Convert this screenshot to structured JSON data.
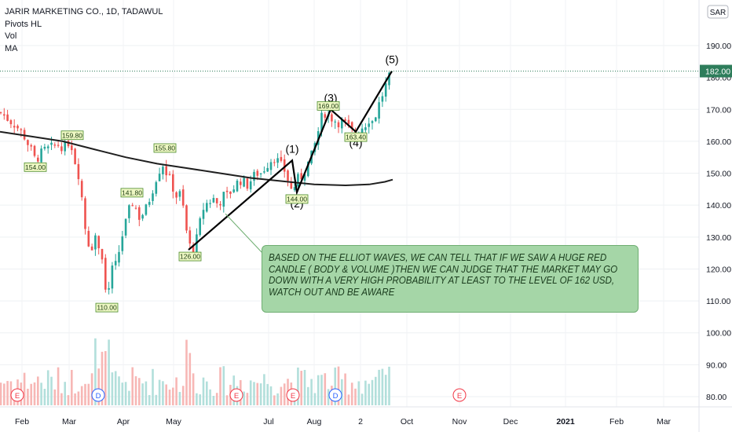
{
  "legend": {
    "symbol": "JARIR MARKETING CO., 1D, TADAWUL",
    "indicators": [
      "Pivots HL",
      "Vol",
      "MA"
    ]
  },
  "currency_badge": "SAR",
  "callout": {
    "text": "BASED ON THE ELLIOT WAVES, WE CAN TELL THAT IF WE SAW A HUGE RED CANDLE ( BODY & VOLUME )THEN WE CAN JUDGE THAT THE MARKET MAY GO DOWN WITH A VERY HIGH PROBABILITY AT LEAST TO THE LEVEL OF 162 USD, WATCH OUT AND BE AWARE"
  },
  "colors": {
    "up": "#26a69a",
    "down": "#ef5350",
    "vol_up": "#b2dfdb",
    "vol_down": "#f7b7b5",
    "ma": "#1f1f1f",
    "wave": "#000000",
    "pivot_bg": "#edf7c3",
    "pivot_border": "#4a8a2a",
    "price_tag": "#2e7d5b",
    "callout_bg": "#a5d6a7"
  },
  "chart_data": {
    "type": "candlestick",
    "ylim": [
      76,
      200
    ],
    "y_ticks": [
      80,
      90,
      100,
      110,
      120,
      130,
      140,
      150,
      160,
      170,
      180,
      190
    ],
    "y_tick_labels": [
      "80.00",
      "90.00",
      "100.00",
      "110.00",
      "120.00",
      "130.00",
      "140.00",
      "150.00",
      "160.00",
      "170.00",
      "180.00",
      "190.00"
    ],
    "last_price": 182.0,
    "last_price_label": "182.00",
    "x_labels": [
      "Feb",
      "Mar",
      "Apr",
      "May",
      "Jul",
      "Aug",
      "2",
      "Oct",
      "Nov",
      "Dec",
      "2021",
      "Feb",
      "Mar"
    ],
    "close_path": [
      [
        1,
        169
      ],
      [
        10,
        167
      ],
      [
        20,
        165
      ],
      [
        30,
        162
      ],
      [
        40,
        157
      ],
      [
        45,
        154
      ],
      [
        55,
        157
      ],
      [
        65,
        158
      ],
      [
        75,
        159
      ],
      [
        82,
        158
      ],
      [
        88,
        160
      ],
      [
        92,
        158
      ],
      [
        97,
        152
      ],
      [
        102,
        148
      ],
      [
        106,
        138
      ],
      [
        110,
        130
      ],
      [
        116,
        126
      ],
      [
        121,
        131
      ],
      [
        126,
        127
      ],
      [
        130,
        124
      ],
      [
        133,
        116
      ],
      [
        136,
        110
      ],
      [
        139,
        114
      ],
      [
        143,
        120
      ],
      [
        147,
        121
      ],
      [
        152,
        126
      ],
      [
        157,
        132
      ],
      [
        162,
        136
      ],
      [
        167,
        141
      ],
      [
        172,
        140
      ],
      [
        176,
        136
      ],
      [
        181,
        137
      ],
      [
        186,
        139
      ],
      [
        192,
        143
      ],
      [
        198,
        148
      ],
      [
        203,
        151
      ],
      [
        208,
        153
      ],
      [
        212,
        150
      ],
      [
        216,
        148
      ],
      [
        221,
        145
      ],
      [
        226,
        142
      ],
      [
        230,
        144
      ],
      [
        234,
        138
      ],
      [
        238,
        131
      ],
      [
        242,
        127
      ],
      [
        245,
        125
      ],
      [
        250,
        129
      ],
      [
        255,
        135
      ],
      [
        260,
        140
      ],
      [
        266,
        141
      ],
      [
        272,
        142
      ],
      [
        278,
        140
      ],
      [
        284,
        143
      ],
      [
        290,
        143
      ],
      [
        296,
        145
      ],
      [
        302,
        147
      ],
      [
        308,
        148
      ],
      [
        314,
        146
      ],
      [
        320,
        148
      ],
      [
        326,
        150
      ],
      [
        332,
        150
      ],
      [
        338,
        152
      ],
      [
        344,
        154
      ],
      [
        350,
        155
      ],
      [
        356,
        153
      ],
      [
        362,
        151
      ],
      [
        368,
        147
      ],
      [
        372,
        144
      ],
      [
        378,
        148
      ],
      [
        384,
        149
      ],
      [
        390,
        152
      ],
      [
        396,
        155
      ],
      [
        402,
        160
      ],
      [
        406,
        164
      ],
      [
        410,
        168
      ],
      [
        414,
        169
      ],
      [
        418,
        168
      ],
      [
        424,
        167
      ],
      [
        430,
        166
      ],
      [
        436,
        166
      ],
      [
        442,
        165
      ],
      [
        448,
        163
      ],
      [
        453,
        163
      ],
      [
        458,
        164
      ],
      [
        464,
        165
      ],
      [
        470,
        167
      ],
      [
        476,
        166
      ],
      [
        480,
        170
      ],
      [
        486,
        174
      ],
      [
        492,
        178
      ],
      [
        499,
        182
      ]
    ],
    "ma_line": [
      [
        0,
        163
      ],
      [
        40,
        161.5
      ],
      [
        80,
        160
      ],
      [
        120,
        157.5
      ],
      [
        160,
        155
      ],
      [
        200,
        153
      ],
      [
        240,
        151.5
      ],
      [
        280,
        150
      ],
      [
        320,
        148.5
      ],
      [
        360,
        147.5
      ],
      [
        400,
        146.5
      ],
      [
        440,
        146.2
      ],
      [
        470,
        146.5
      ],
      [
        490,
        147.3
      ],
      [
        500,
        148
      ]
    ],
    "volume_events_x": [
      22,
      125,
      301,
      373,
      427,
      585
    ],
    "volume_event_labels": [
      "E",
      "D",
      "E",
      "E",
      "D",
      "E"
    ],
    "pivots": [
      {
        "x": 92,
        "value": 159.8,
        "label": "159.80",
        "side": "above"
      },
      {
        "x": 45,
        "value": 154.0,
        "label": "154.00",
        "side": "below"
      },
      {
        "x": 210,
        "value": 155.8,
        "label": "155.80",
        "side": "above"
      },
      {
        "x": 168,
        "value": 141.8,
        "label": "141.80",
        "side": "above"
      },
      {
        "x": 136,
        "value": 110.0,
        "label": "110.00",
        "side": "below"
      },
      {
        "x": 242,
        "value": 126.0,
        "label": "126.00",
        "side": "below"
      },
      {
        "x": 378,
        "value": 144.0,
        "label": "144.00",
        "side": "below"
      },
      {
        "x": 418,
        "value": 169.0,
        "label": "169.00",
        "side": "above"
      },
      {
        "x": 453,
        "value": 163.4,
        "label": "163.40",
        "side": "below"
      }
    ],
    "waves": [
      {
        "label": "(1)",
        "x": 372,
        "value": 154,
        "pos": "above"
      },
      {
        "label": "(2)",
        "x": 378,
        "value": 144,
        "pos": "below"
      },
      {
        "label": "(3)",
        "x": 421,
        "value": 170,
        "pos": "above"
      },
      {
        "label": "(4)",
        "x": 453,
        "value": 163,
        "pos": "below"
      },
      {
        "label": "(5)",
        "x": 499,
        "value": 182,
        "pos": "above"
      }
    ],
    "wave_path": [
      [
        240,
        126
      ],
      [
        372,
        154
      ],
      [
        378,
        144
      ],
      [
        421,
        170
      ],
      [
        453,
        163
      ],
      [
        499,
        182
      ]
    ]
  }
}
